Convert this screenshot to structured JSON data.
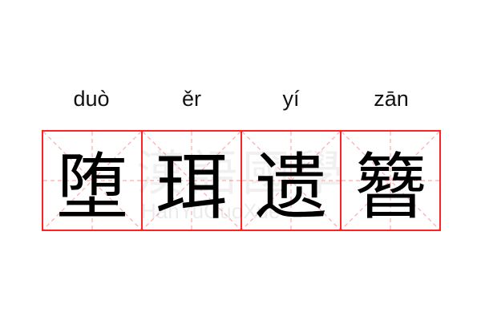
{
  "idiom": [
    {
      "pinyin": "duò",
      "char": "堕"
    },
    {
      "pinyin": "ěr",
      "char": "珥"
    },
    {
      "pinyin": "yí",
      "char": "遗"
    },
    {
      "pinyin": "zān",
      "char": "簪"
    }
  ],
  "watermark": {
    "han": "漢語國學",
    "latin": "HanYuGuoXue"
  },
  "colors": {
    "grid": "#ff2222",
    "guide": "#ffaaaa"
  }
}
